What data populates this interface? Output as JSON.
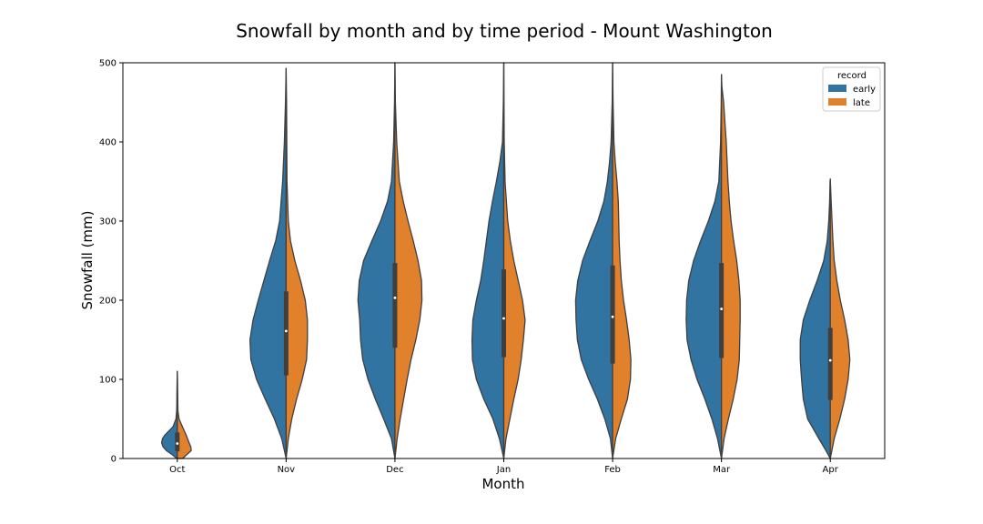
{
  "chart_data": {
    "type": "violin",
    "split": true,
    "title": "Snowfall by month and by time period - Mount Washington",
    "xlabel": "Month",
    "ylabel": "Snowfall (mm)",
    "ylim": [
      0,
      500
    ],
    "yticks": [
      0,
      100,
      200,
      300,
      400,
      500
    ],
    "categories": [
      "Oct",
      "Nov",
      "Dec",
      "Jan",
      "Feb",
      "Mar",
      "Apr"
    ],
    "legend": {
      "title": "record",
      "position": "top-right"
    },
    "series": [
      {
        "name": "early",
        "color": "#3274a1"
      },
      {
        "name": "late",
        "color": "#e1812c"
      }
    ],
    "box": [
      {
        "month": "Oct",
        "q1": 9,
        "median": 19,
        "q3": 33
      },
      {
        "month": "Nov",
        "q1": 105,
        "median": 161,
        "q3": 211
      },
      {
        "month": "Dec",
        "q1": 140,
        "median": 203,
        "q3": 247
      },
      {
        "month": "Jan",
        "q1": 128,
        "median": 177,
        "q3": 239
      },
      {
        "month": "Feb",
        "q1": 120,
        "median": 179,
        "q3": 244
      },
      {
        "month": "Mar",
        "q1": 127,
        "median": 189,
        "q3": 247
      },
      {
        "month": "Apr",
        "q1": 74,
        "median": 124,
        "q3": 165
      }
    ],
    "violins": [
      {
        "month": "Oct",
        "early": [
          [
            0,
            0.01
          ],
          [
            5,
            0.12
          ],
          [
            10,
            0.25
          ],
          [
            15,
            0.33
          ],
          [
            20,
            0.36
          ],
          [
            25,
            0.34
          ],
          [
            30,
            0.28
          ],
          [
            40,
            0.1
          ],
          [
            50,
            0.03
          ],
          [
            60,
            0.015
          ],
          [
            70,
            0.01
          ],
          [
            80,
            0.01
          ],
          [
            95,
            0.005
          ],
          [
            110,
            0
          ]
        ],
        "late": [
          [
            0,
            0.12
          ],
          [
            5,
            0.22
          ],
          [
            10,
            0.32
          ],
          [
            15,
            0.31
          ],
          [
            20,
            0.27
          ],
          [
            30,
            0.2
          ],
          [
            40,
            0.12
          ],
          [
            50,
            0.04
          ],
          [
            60,
            0.015
          ],
          [
            80,
            0.01
          ],
          [
            100,
            0.005
          ],
          [
            110,
            0
          ]
        ]
      },
      {
        "month": "Nov",
        "early": [
          [
            0,
            0
          ],
          [
            25,
            0.1
          ],
          [
            50,
            0.27
          ],
          [
            75,
            0.48
          ],
          [
            100,
            0.68
          ],
          [
            125,
            0.81
          ],
          [
            150,
            0.83
          ],
          [
            175,
            0.76
          ],
          [
            200,
            0.64
          ],
          [
            225,
            0.51
          ],
          [
            250,
            0.38
          ],
          [
            275,
            0.24
          ],
          [
            300,
            0.15
          ],
          [
            350,
            0.08
          ],
          [
            400,
            0.04
          ],
          [
            450,
            0.015
          ],
          [
            493,
            0
          ]
        ],
        "late": [
          [
            0,
            0
          ],
          [
            25,
            0.05
          ],
          [
            50,
            0.13
          ],
          [
            75,
            0.24
          ],
          [
            100,
            0.37
          ],
          [
            125,
            0.47
          ],
          [
            150,
            0.49
          ],
          [
            175,
            0.49
          ],
          [
            200,
            0.44
          ],
          [
            225,
            0.33
          ],
          [
            250,
            0.2
          ],
          [
            275,
            0.1
          ],
          [
            300,
            0.05
          ],
          [
            350,
            0.02
          ],
          [
            400,
            0.015
          ],
          [
            450,
            0.01
          ],
          [
            493,
            0
          ]
        ]
      },
      {
        "month": "Dec",
        "early": [
          [
            0,
            0
          ],
          [
            25,
            0.08
          ],
          [
            50,
            0.26
          ],
          [
            75,
            0.45
          ],
          [
            100,
            0.62
          ],
          [
            125,
            0.74
          ],
          [
            150,
            0.79
          ],
          [
            175,
            0.81
          ],
          [
            200,
            0.85
          ],
          [
            225,
            0.82
          ],
          [
            250,
            0.72
          ],
          [
            275,
            0.53
          ],
          [
            300,
            0.33
          ],
          [
            325,
            0.17
          ],
          [
            350,
            0.08
          ],
          [
            400,
            0.03
          ],
          [
            450,
            0.01
          ],
          [
            500,
            0
          ]
        ],
        "late": [
          [
            0,
            0
          ],
          [
            25,
            0.05
          ],
          [
            50,
            0.12
          ],
          [
            75,
            0.2
          ],
          [
            100,
            0.28
          ],
          [
            125,
            0.37
          ],
          [
            150,
            0.48
          ],
          [
            175,
            0.57
          ],
          [
            200,
            0.62
          ],
          [
            225,
            0.61
          ],
          [
            250,
            0.53
          ],
          [
            275,
            0.42
          ],
          [
            300,
            0.3
          ],
          [
            325,
            0.19
          ],
          [
            350,
            0.1
          ],
          [
            400,
            0.04
          ],
          [
            450,
            0.01
          ],
          [
            500,
            0
          ]
        ]
      },
      {
        "month": "Jan",
        "early": [
          [
            0,
            0
          ],
          [
            25,
            0.1
          ],
          [
            50,
            0.25
          ],
          [
            75,
            0.46
          ],
          [
            100,
            0.63
          ],
          [
            125,
            0.72
          ],
          [
            150,
            0.73
          ],
          [
            175,
            0.71
          ],
          [
            200,
            0.63
          ],
          [
            225,
            0.53
          ],
          [
            250,
            0.46
          ],
          [
            275,
            0.4
          ],
          [
            300,
            0.34
          ],
          [
            325,
            0.26
          ],
          [
            350,
            0.17
          ],
          [
            375,
            0.09
          ],
          [
            400,
            0.03
          ],
          [
            450,
            0.01
          ],
          [
            500,
            0
          ]
        ],
        "late": [
          [
            0,
            0
          ],
          [
            25,
            0.05
          ],
          [
            50,
            0.14
          ],
          [
            75,
            0.23
          ],
          [
            100,
            0.33
          ],
          [
            125,
            0.4
          ],
          [
            150,
            0.45
          ],
          [
            175,
            0.49
          ],
          [
            200,
            0.43
          ],
          [
            225,
            0.33
          ],
          [
            250,
            0.23
          ],
          [
            275,
            0.15
          ],
          [
            300,
            0.09
          ],
          [
            350,
            0.03
          ],
          [
            400,
            0.01
          ],
          [
            450,
            0.005
          ],
          [
            500,
            0
          ]
        ]
      },
      {
        "month": "Feb",
        "early": [
          [
            0,
            0
          ],
          [
            25,
            0.05
          ],
          [
            50,
            0.18
          ],
          [
            75,
            0.35
          ],
          [
            100,
            0.55
          ],
          [
            125,
            0.72
          ],
          [
            150,
            0.81
          ],
          [
            175,
            0.84
          ],
          [
            200,
            0.85
          ],
          [
            225,
            0.8
          ],
          [
            250,
            0.69
          ],
          [
            275,
            0.52
          ],
          [
            300,
            0.34
          ],
          [
            325,
            0.2
          ],
          [
            350,
            0.12
          ],
          [
            375,
            0.07
          ],
          [
            400,
            0.035
          ],
          [
            450,
            0.01
          ],
          [
            500,
            0
          ]
        ],
        "late": [
          [
            0,
            0
          ],
          [
            25,
            0.07
          ],
          [
            50,
            0.2
          ],
          [
            75,
            0.34
          ],
          [
            100,
            0.41
          ],
          [
            125,
            0.42
          ],
          [
            150,
            0.38
          ],
          [
            175,
            0.32
          ],
          [
            200,
            0.25
          ],
          [
            225,
            0.2
          ],
          [
            250,
            0.17
          ],
          [
            275,
            0.15
          ],
          [
            300,
            0.14
          ],
          [
            325,
            0.13
          ],
          [
            350,
            0.1
          ],
          [
            375,
            0.06
          ],
          [
            400,
            0.03
          ],
          [
            450,
            0.01
          ],
          [
            500,
            0
          ]
        ]
      },
      {
        "month": "Mar",
        "early": [
          [
            0,
            0
          ],
          [
            25,
            0.09
          ],
          [
            50,
            0.22
          ],
          [
            75,
            0.38
          ],
          [
            100,
            0.56
          ],
          [
            125,
            0.7
          ],
          [
            150,
            0.79
          ],
          [
            175,
            0.81
          ],
          [
            200,
            0.8
          ],
          [
            225,
            0.75
          ],
          [
            250,
            0.64
          ],
          [
            275,
            0.48
          ],
          [
            300,
            0.3
          ],
          [
            325,
            0.15
          ],
          [
            350,
            0.06
          ],
          [
            400,
            0.02
          ],
          [
            450,
            0.005
          ],
          [
            485,
            0
          ]
        ],
        "late": [
          [
            0,
            0
          ],
          [
            25,
            0.06
          ],
          [
            50,
            0.16
          ],
          [
            75,
            0.27
          ],
          [
            100,
            0.36
          ],
          [
            125,
            0.41
          ],
          [
            150,
            0.42
          ],
          [
            175,
            0.43
          ],
          [
            200,
            0.43
          ],
          [
            225,
            0.4
          ],
          [
            250,
            0.35
          ],
          [
            275,
            0.28
          ],
          [
            300,
            0.22
          ],
          [
            325,
            0.18
          ],
          [
            350,
            0.15
          ],
          [
            375,
            0.13
          ],
          [
            400,
            0.11
          ],
          [
            425,
            0.08
          ],
          [
            450,
            0.05
          ],
          [
            470,
            0.01
          ],
          [
            485,
            0
          ]
        ]
      },
      {
        "month": "Apr",
        "early": [
          [
            0,
            0
          ],
          [
            10,
            0.1
          ],
          [
            25,
            0.26
          ],
          [
            50,
            0.52
          ],
          [
            75,
            0.62
          ],
          [
            100,
            0.66
          ],
          [
            125,
            0.69
          ],
          [
            150,
            0.69
          ],
          [
            175,
            0.62
          ],
          [
            200,
            0.47
          ],
          [
            225,
            0.3
          ],
          [
            250,
            0.15
          ],
          [
            275,
            0.07
          ],
          [
            300,
            0.035
          ],
          [
            325,
            0.015
          ],
          [
            350,
            0.005
          ],
          [
            353,
            0
          ]
        ],
        "late": [
          [
            0,
            0
          ],
          [
            25,
            0.09
          ],
          [
            50,
            0.22
          ],
          [
            75,
            0.33
          ],
          [
            100,
            0.41
          ],
          [
            125,
            0.45
          ],
          [
            150,
            0.41
          ],
          [
            175,
            0.33
          ],
          [
            200,
            0.23
          ],
          [
            225,
            0.15
          ],
          [
            250,
            0.09
          ],
          [
            275,
            0.06
          ],
          [
            300,
            0.04
          ],
          [
            325,
            0.02
          ],
          [
            353,
            0
          ]
        ]
      }
    ]
  }
}
